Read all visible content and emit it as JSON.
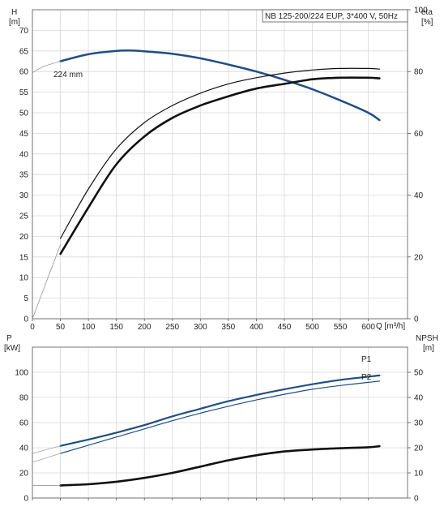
{
  "title": "NB 125-200/224 EUP, 3*400 V, 50Hz",
  "chart_data": [
    {
      "id": "top",
      "type": "line",
      "y_left": {
        "label_top": "H",
        "label_unit": "[m]",
        "range": [
          0,
          75
        ],
        "ticks": [
          0,
          5,
          10,
          15,
          20,
          25,
          30,
          35,
          40,
          45,
          50,
          55,
          60,
          65,
          70
        ]
      },
      "y_right": {
        "label_top": "eta",
        "label_unit": "[%]",
        "range": [
          0,
          100
        ],
        "ticks": [
          0,
          20,
          40,
          60,
          80,
          100
        ]
      },
      "x": {
        "label": "Q [m³/h]",
        "range": [
          0,
          670
        ],
        "ticks": [
          0,
          50,
          100,
          150,
          200,
          250,
          300,
          350,
          400,
          450,
          500,
          550,
          600
        ]
      },
      "grid": true,
      "series": [
        {
          "name": "224 mm",
          "axis": "left",
          "color": "#1f4e85",
          "width": 2.5,
          "x": [
            50,
            100,
            150,
            175,
            200,
            250,
            300,
            350,
            400,
            450,
            500,
            550,
            600,
            620
          ],
          "y": [
            62.5,
            64.2,
            65,
            65.1,
            64.9,
            64.3,
            63.2,
            61.7,
            60,
            58,
            55.7,
            53,
            50,
            48.2
          ]
        },
        {
          "axis": "left",
          "color": "#888888",
          "width": 0.7,
          "x": [
            0,
            20,
            50
          ],
          "y": [
            59.7,
            61.2,
            62.5
          ]
        },
        {
          "axis": "right",
          "color": "#111111",
          "width": 1.2,
          "x": [
            50,
            100,
            150,
            200,
            250,
            300,
            350,
            400,
            450,
            500,
            550,
            600,
            620
          ],
          "y": [
            26,
            42,
            55,
            63.5,
            69,
            73,
            76,
            78,
            79.5,
            80.5,
            81,
            81,
            80.8
          ]
        },
        {
          "axis": "right",
          "color": "#111111",
          "width": 2.6,
          "x": [
            50,
            100,
            150,
            200,
            250,
            300,
            350,
            400,
            450,
            500,
            550,
            600,
            620
          ],
          "y": [
            21,
            36,
            50,
            59,
            65,
            69,
            72,
            74.5,
            76,
            77.5,
            78,
            78,
            77.8
          ]
        },
        {
          "axis": "right",
          "color": "#888888",
          "width": 0.7,
          "x": [
            0,
            25,
            50
          ],
          "y": [
            0,
            12,
            24
          ]
        }
      ]
    },
    {
      "id": "bottom",
      "type": "line",
      "y_left": {
        "label_top": "P",
        "label_unit": "[kW]",
        "range": [
          0,
          120
        ],
        "ticks": [
          0,
          20,
          40,
          60,
          80,
          100
        ]
      },
      "y_right": {
        "label_top": "NPSH",
        "label_unit": "[m]",
        "range": [
          0,
          60
        ],
        "ticks": [
          0,
          10,
          20,
          30,
          40,
          50
        ]
      },
      "x": {
        "range": [
          0,
          670
        ],
        "ticks": [
          0,
          50,
          100,
          150,
          200,
          250,
          300,
          350,
          400,
          450,
          500,
          550,
          600
        ]
      },
      "grid": true,
      "series": [
        {
          "name": "P1",
          "axis": "left",
          "color": "#1f4e85",
          "width": 2.2,
          "x": [
            50,
            100,
            150,
            200,
            250,
            300,
            350,
            400,
            450,
            500,
            550,
            600,
            620
          ],
          "y": [
            41.5,
            46.5,
            52,
            58,
            65,
            71,
            77,
            82,
            86.5,
            90.5,
            94,
            96.5,
            97.5
          ]
        },
        {
          "name": "P2",
          "axis": "left",
          "color": "#1f4e85",
          "width": 1.2,
          "x": [
            50,
            100,
            150,
            200,
            250,
            300,
            350,
            400,
            450,
            500,
            550,
            600,
            620
          ],
          "y": [
            35.5,
            42,
            48.5,
            55,
            61.5,
            67.5,
            73,
            78,
            82.5,
            86.5,
            89.5,
            92,
            93
          ]
        },
        {
          "axis": "left",
          "color": "#999999",
          "width": 0.7,
          "x": [
            0,
            50
          ],
          "y": [
            35.5,
            41.5
          ]
        },
        {
          "axis": "left",
          "color": "#999999",
          "width": 0.7,
          "x": [
            0,
            50
          ],
          "y": [
            28.5,
            35.5
          ]
        },
        {
          "name": "NPSH",
          "axis": "right",
          "color": "#111111",
          "width": 2.6,
          "x": [
            50,
            100,
            150,
            200,
            250,
            300,
            350,
            400,
            450,
            500,
            550,
            600,
            620
          ],
          "y": [
            5,
            5.5,
            6.5,
            8,
            10,
            12.5,
            15,
            17,
            18.5,
            19.3,
            19.8,
            20.2,
            20.6
          ]
        },
        {
          "axis": "right",
          "color": "#888888",
          "width": 0.7,
          "x": [
            0,
            50
          ],
          "y": [
            5,
            5
          ]
        }
      ]
    }
  ]
}
